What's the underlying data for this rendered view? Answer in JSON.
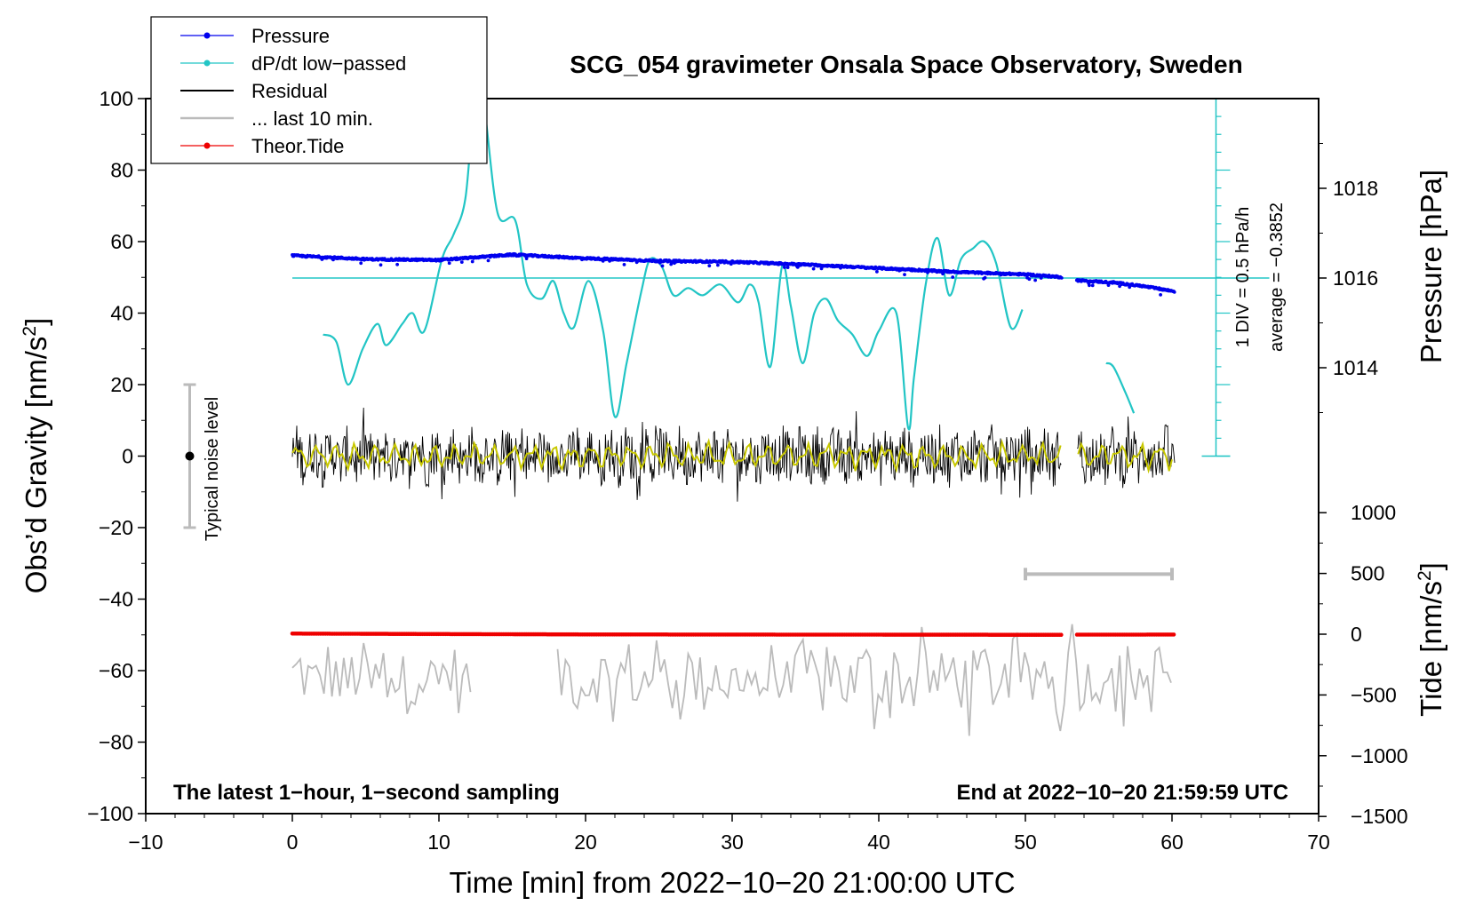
{
  "chart_data": {
    "type": "line",
    "title": "SCG_054 gravimeter Onsala Space Observatory, Sweden",
    "xlabel": "Time [min] from 2022−10−20 21:00:00 UTC",
    "ylabel_left": "Obs’d Gravity [nm/s²]",
    "ylabel_right_top": "Pressure [hPa]",
    "ylabel_right_bottom": "Tide [nm/s²]",
    "xlim": [
      -10,
      70
    ],
    "ylim": [
      -100,
      100
    ],
    "x_ticks": [
      "−10",
      "0",
      "10",
      "20",
      "30",
      "40",
      "50",
      "60",
      "70"
    ],
    "y_ticks": [
      "100",
      "80",
      "60",
      "40",
      "20",
      "0",
      "−20",
      "−40",
      "−60",
      "−80",
      "−100"
    ],
    "pressure_ticks": [
      "1018",
      "1016",
      "1014"
    ],
    "tide_ticks": [
      "1000",
      "500",
      "0",
      "−500",
      "−1000",
      "−1500"
    ],
    "legend": {
      "position": "top-left",
      "entries": [
        {
          "label": "Pressure",
          "color": "#0000ee",
          "marker": true
        },
        {
          "label": "dP/dt low−passed",
          "color": "#22c5c5",
          "marker": true
        },
        {
          "label": "Residual",
          "color": "#000000",
          "marker": false
        },
        {
          "label": "... last 10 min.",
          "color": "#bbbbbb",
          "marker": false
        },
        {
          "label": "Theor.Tide",
          "color": "#ee0000",
          "marker": true
        }
      ]
    },
    "annotations": {
      "left_bottom": "The latest 1−hour, 1−second sampling",
      "right_bottom": "End at 2022−10−20 21:59:59 UTC",
      "noise": "Typical noise level",
      "div": "1 DIV = 0.5 hPa/h",
      "average": "average = −0.3852"
    },
    "noise_bar": {
      "x": -7,
      "center": 0,
      "half_range": 20
    },
    "last10_bar": {
      "x_start": 50,
      "x_end": 60,
      "y": -33
    },
    "dpdt_scale": {
      "x": 63,
      "y_min": 0,
      "y_max": 100,
      "divisions": 20
    },
    "series": [
      {
        "name": "Pressure",
        "axis": "pressure_hPa",
        "color": "#0000ee",
        "x": [
          0,
          5,
          10,
          15,
          20,
          25,
          30,
          35,
          40,
          45,
          50,
          52.5,
          53.5,
          56,
          58,
          60.2
        ],
        "y": [
          1016.5,
          1016.42,
          1016.4,
          1016.52,
          1016.44,
          1016.38,
          1016.36,
          1016.3,
          1016.22,
          1016.14,
          1016.08,
          1016.02,
          1015.95,
          1015.9,
          1015.82,
          1015.7
        ]
      },
      {
        "name": "Pressure reference",
        "axis": "pressure_hPa",
        "color": "#22c5c5",
        "x": [
          0,
          63
        ],
        "y": [
          1016,
          1016
        ]
      },
      {
        "name": "dP/dt low-passed",
        "axis": "gravity",
        "color": "#22c5c5",
        "x": [
          2.1,
          3,
          3.8,
          4.8,
          5.8,
          6.4,
          7.5,
          8.2,
          9,
          10.2,
          11,
          11.8,
          12.4,
          13,
          14,
          15.2,
          16,
          17,
          17.8,
          18.5,
          19.2,
          20.2,
          21.2,
          22,
          22.8,
          23.8,
          24.4,
          25.2,
          26,
          27,
          28,
          29.2,
          30.4,
          31.2,
          31.8,
          32.6,
          33.4,
          34,
          34.8,
          35.6,
          36.4,
          37.2,
          38.2,
          39.2,
          40,
          41.2,
          42,
          42.4,
          43.2,
          44,
          44.8,
          45.6,
          46.4,
          47.2,
          48,
          49,
          49.8,
          55.5,
          56,
          56.8,
          57.4
        ],
        "y": [
          34,
          32,
          20,
          30,
          37,
          31,
          37,
          40,
          35,
          55,
          62,
          72,
          98,
          100,
          68,
          66,
          48,
          44,
          49,
          40,
          36,
          49,
          35,
          11,
          26,
          46,
          55,
          53,
          45,
          47,
          45,
          48,
          43,
          48,
          43,
          25,
          53,
          42,
          26,
          40,
          44,
          38,
          34,
          28,
          35,
          40,
          8,
          22,
          48,
          61,
          45,
          55,
          58,
          60,
          54,
          36,
          41,
          26,
          25,
          18,
          12
        ]
      },
      {
        "name": "Residual",
        "axis": "gravity",
        "color": "#000000",
        "x": [
          0,
          60.2
        ],
        "amplitude_range": [
          -15,
          15
        ],
        "gaps": [
          [
            52.5,
            53.5
          ]
        ]
      },
      {
        "name": "Residual smoothed",
        "axis": "gravity",
        "color": "#c8c800",
        "x": [
          0,
          60.2
        ],
        "amplitude_range": [
          -5,
          5
        ]
      },
      {
        "name": "... last 10 min.",
        "axis": "gravity",
        "color": "#bbbbbb",
        "x": [
          0,
          60.2
        ],
        "center": -62,
        "amplitude_range": [
          -82,
          -47
        ],
        "gaps": [
          [
            12.2,
            18
          ]
        ]
      },
      {
        "name": "Theor.Tide",
        "axis": "tide_nm_s2",
        "color": "#ee0000",
        "x": [
          0,
          8,
          20,
          30,
          40,
          50,
          52.5,
          53.5,
          60.2
        ],
        "y": [
          5,
          2,
          -2,
          -3,
          -4,
          -5,
          -5,
          -4,
          -3
        ]
      }
    ]
  }
}
